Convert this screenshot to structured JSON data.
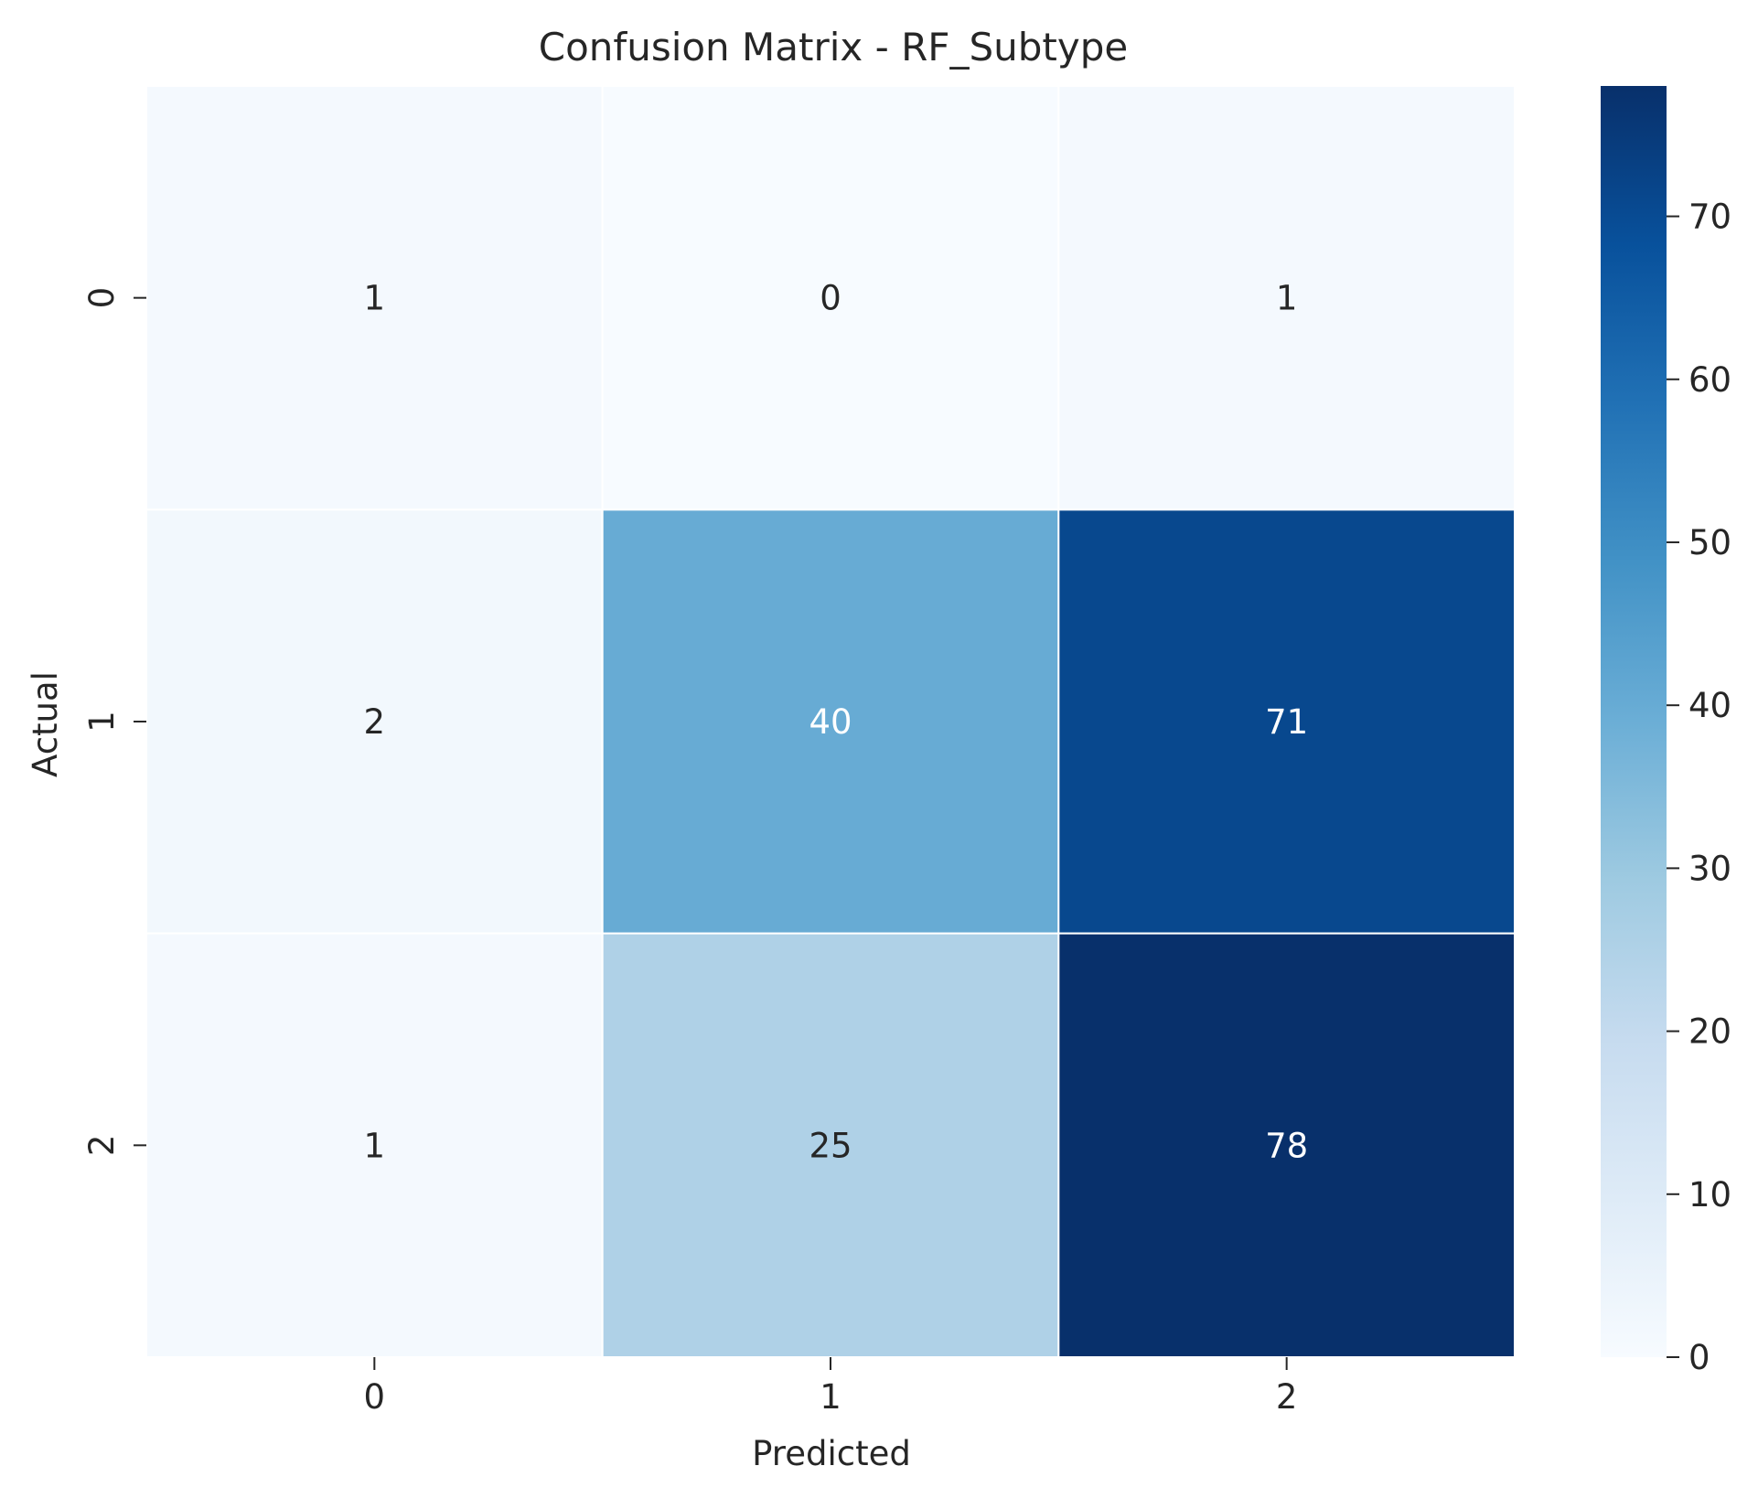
{
  "chart_data": {
    "type": "heatmap",
    "title": "Confusion Matrix - RF_Subtype",
    "xlabel": "Predicted",
    "ylabel": "Actual",
    "x_categories": [
      "0",
      "1",
      "2"
    ],
    "y_categories": [
      "0",
      "1",
      "2"
    ],
    "values": [
      [
        1,
        0,
        1
      ],
      [
        2,
        40,
        71
      ],
      [
        1,
        25,
        78
      ]
    ],
    "colormap": "Blues",
    "colorbar": {
      "min": 0,
      "max": 78,
      "ticks": [
        0,
        10,
        20,
        30,
        40,
        50,
        60,
        70
      ]
    },
    "text_colors": {
      "dark": "#262626",
      "light": "#ffffff"
    }
  }
}
